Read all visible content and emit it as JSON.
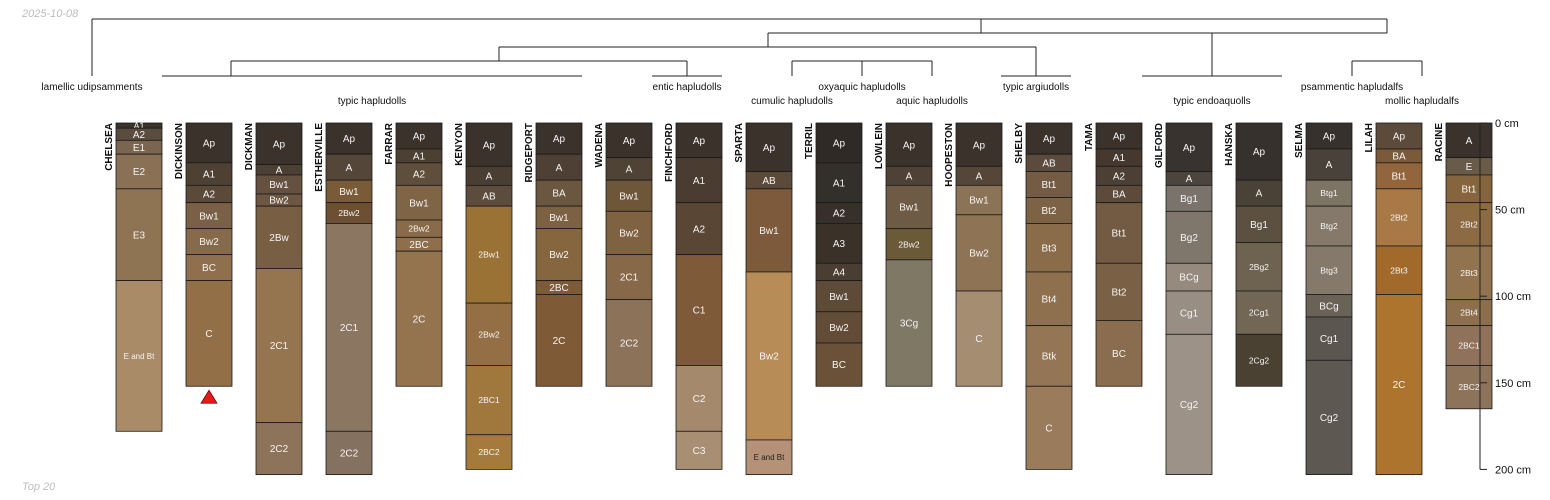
{
  "date_stamp": "2025-10-08",
  "footer_note": "Top 20",
  "depth_axis": {
    "unit": "cm",
    "max_depth": 200,
    "ticks": [
      {
        "depth": 0,
        "label": "0 cm"
      },
      {
        "depth": 50,
        "label": "50 cm"
      },
      {
        "depth": 100,
        "label": "100 cm"
      },
      {
        "depth": 150,
        "label": "150 cm"
      },
      {
        "depth": 200,
        "label": "200 cm"
      }
    ]
  },
  "group_labels": [
    {
      "text": "lamellic udipsamments",
      "level": 1
    },
    {
      "text": "typic hapludolls",
      "level": 2
    },
    {
      "text": "entic hapludolls",
      "level": 1
    },
    {
      "text": "cumulic hapludolls",
      "level": 2
    },
    {
      "text": "oxyaquic hapludolls",
      "level": 1
    },
    {
      "text": "aquic hapludolls",
      "level": 2
    },
    {
      "text": "typic argiudolls",
      "level": 1
    },
    {
      "text": "typic endoaquolls",
      "level": 2
    },
    {
      "text": "psammentic hapludalfs",
      "level": 1
    },
    {
      "text": "mollic hapludalfs",
      "level": 2
    }
  ],
  "profiles": [
    {
      "name": "CHELSEA",
      "horizons": [
        {
          "name": "A1",
          "top": 0,
          "bottom": 3,
          "color": "#3a322b"
        },
        {
          "name": "A2",
          "top": 3,
          "bottom": 10,
          "color": "#5a4c3e"
        },
        {
          "name": "E1",
          "top": 10,
          "bottom": 18,
          "color": "#7a6650"
        },
        {
          "name": "E2",
          "top": 18,
          "bottom": 38,
          "color": "#8a7055"
        },
        {
          "name": "E3",
          "top": 38,
          "bottom": 91,
          "color": "#8e7453"
        },
        {
          "name": "E and Bt",
          "top": 91,
          "bottom": 178,
          "color": "#a98c67"
        }
      ]
    },
    {
      "name": "DICKINSON",
      "horizons": [
        {
          "name": "Ap",
          "top": 0,
          "bottom": 23,
          "color": "#3b322b"
        },
        {
          "name": "A1",
          "top": 23,
          "bottom": 36,
          "color": "#4e4033"
        },
        {
          "name": "A2",
          "top": 36,
          "bottom": 46,
          "color": "#5b4a39"
        },
        {
          "name": "Bw1",
          "top": 46,
          "bottom": 61,
          "color": "#7a6046"
        },
        {
          "name": "Bw2",
          "top": 61,
          "bottom": 76,
          "color": "#876a4b"
        },
        {
          "name": "BC",
          "top": 76,
          "bottom": 91,
          "color": "#906f4e"
        },
        {
          "name": "C",
          "top": 91,
          "bottom": 152,
          "color": "#936f48"
        }
      ]
    },
    {
      "name": "DICKMAN",
      "horizons": [
        {
          "name": "Ap",
          "top": 0,
          "bottom": 24,
          "color": "#3b322c"
        },
        {
          "name": "A",
          "top": 24,
          "bottom": 30,
          "color": "#4c4034"
        },
        {
          "name": "Bw1",
          "top": 30,
          "bottom": 41,
          "color": "#655140"
        },
        {
          "name": "Bw2",
          "top": 41,
          "bottom": 48,
          "color": "#6d5743"
        },
        {
          "name": "2Bw",
          "top": 48,
          "bottom": 84,
          "color": "#785f44"
        },
        {
          "name": "2C1",
          "top": 84,
          "bottom": 173,
          "color": "#94754f"
        },
        {
          "name": "2C2",
          "top": 173,
          "bottom": 203,
          "color": "#8c735a"
        }
      ]
    },
    {
      "name": "ESTHERVILLE",
      "horizons": [
        {
          "name": "Ap",
          "top": 0,
          "bottom": 18,
          "color": "#3b322b"
        },
        {
          "name": "A",
          "top": 18,
          "bottom": 33,
          "color": "#54473a"
        },
        {
          "name": "Bw1",
          "top": 33,
          "bottom": 46,
          "color": "#7a5b38"
        },
        {
          "name": "2Bw2",
          "top": 46,
          "bottom": 58,
          "color": "#6d5033"
        },
        {
          "name": "2C1",
          "top": 58,
          "bottom": 178,
          "color": "#8a7661"
        },
        {
          "name": "2C2",
          "top": 178,
          "bottom": 203,
          "color": "#857160"
        }
      ]
    },
    {
      "name": "FARRAR",
      "horizons": [
        {
          "name": "Ap",
          "top": 0,
          "bottom": 15,
          "color": "#3b322b"
        },
        {
          "name": "A1",
          "top": 15,
          "bottom": 23,
          "color": "#4c4033"
        },
        {
          "name": "A2",
          "top": 23,
          "bottom": 36,
          "color": "#5f4e3c"
        },
        {
          "name": "Bw1",
          "top": 36,
          "bottom": 56,
          "color": "#7f6446"
        },
        {
          "name": "2Bw2",
          "top": 56,
          "bottom": 66,
          "color": "#8a6b49"
        },
        {
          "name": "2BC",
          "top": 66,
          "bottom": 74,
          "color": "#8e6e4b"
        },
        {
          "name": "2C",
          "top": 74,
          "bottom": 152,
          "color": "#94744f"
        }
      ]
    },
    {
      "name": "KENYON",
      "horizons": [
        {
          "name": "Ap",
          "top": 0,
          "bottom": 25,
          "color": "#3b322b"
        },
        {
          "name": "A",
          "top": 25,
          "bottom": 36,
          "color": "#4a3e33"
        },
        {
          "name": "AB",
          "top": 36,
          "bottom": 48,
          "color": "#5c4c3d"
        },
        {
          "name": "2Bw1",
          "top": 48,
          "bottom": 104,
          "color": "#9a7235"
        },
        {
          "name": "2Bw2",
          "top": 104,
          "bottom": 140,
          "color": "#946f45"
        },
        {
          "name": "2BC1",
          "top": 140,
          "bottom": 180,
          "color": "#a0783e"
        },
        {
          "name": "2BC2",
          "top": 180,
          "bottom": 200,
          "color": "#a47b3d"
        }
      ]
    },
    {
      "name": "RIDGEPORT",
      "horizons": [
        {
          "name": "Ap",
          "top": 0,
          "bottom": 18,
          "color": "#3b322b"
        },
        {
          "name": "A",
          "top": 18,
          "bottom": 33,
          "color": "#4e4034"
        },
        {
          "name": "BA",
          "top": 33,
          "bottom": 48,
          "color": "#6b5640"
        },
        {
          "name": "Bw1",
          "top": 48,
          "bottom": 61,
          "color": "#7d6143"
        },
        {
          "name": "Bw2",
          "top": 61,
          "bottom": 91,
          "color": "#86663f"
        },
        {
          "name": "2BC",
          "top": 91,
          "bottom": 99,
          "color": "#7d5a38"
        },
        {
          "name": "2C",
          "top": 99,
          "bottom": 152,
          "color": "#7e5a37"
        }
      ]
    },
    {
      "name": "WADENA",
      "horizons": [
        {
          "name": "Ap",
          "top": 0,
          "bottom": 20,
          "color": "#3b322b"
        },
        {
          "name": "A",
          "top": 20,
          "bottom": 33,
          "color": "#4f4336"
        },
        {
          "name": "Bw1",
          "top": 33,
          "bottom": 51,
          "color": "#6e5639"
        },
        {
          "name": "Bw2",
          "top": 51,
          "bottom": 76,
          "color": "#7f6241"
        },
        {
          "name": "2C1",
          "top": 76,
          "bottom": 102,
          "color": "#87694a"
        },
        {
          "name": "2C2",
          "top": 102,
          "bottom": 152,
          "color": "#8c7258"
        }
      ]
    },
    {
      "name": "FINCHFORD",
      "horizons": [
        {
          "name": "Ap",
          "top": 0,
          "bottom": 20,
          "color": "#3b322b"
        },
        {
          "name": "A1",
          "top": 20,
          "bottom": 46,
          "color": "#4a3c30"
        },
        {
          "name": "A2",
          "top": 46,
          "bottom": 76,
          "color": "#5a4634"
        },
        {
          "name": "C1",
          "top": 76,
          "bottom": 140,
          "color": "#7e5a38"
        },
        {
          "name": "C2",
          "top": 140,
          "bottom": 178,
          "color": "#a4896c"
        },
        {
          "name": "C3",
          "top": 178,
          "bottom": 200,
          "color": "#a88e72"
        }
      ]
    },
    {
      "name": "SPARTA",
      "horizons": [
        {
          "name": "Ap",
          "top": 0,
          "bottom": 28,
          "color": "#3b322b"
        },
        {
          "name": "AB",
          "top": 28,
          "bottom": 38,
          "color": "#5b4a3a"
        },
        {
          "name": "Bw1",
          "top": 38,
          "bottom": 86,
          "color": "#7d5a3b"
        },
        {
          "name": "Bw2",
          "top": 86,
          "bottom": 183,
          "color": "#b88c56"
        },
        {
          "name": "E and Bt",
          "top": 183,
          "bottom": 203,
          "color": "#b59277"
        }
      ]
    },
    {
      "name": "TERRIL",
      "horizons": [
        {
          "name": "Ap",
          "top": 0,
          "bottom": 23,
          "color": "#2f2a26"
        },
        {
          "name": "A1",
          "top": 23,
          "bottom": 46,
          "color": "#33302c"
        },
        {
          "name": "A2",
          "top": 46,
          "bottom": 58,
          "color": "#37302a"
        },
        {
          "name": "A3",
          "top": 58,
          "bottom": 81,
          "color": "#3a3229"
        },
        {
          "name": "A4",
          "top": 81,
          "bottom": 91,
          "color": "#4a3d31"
        },
        {
          "name": "Bw1",
          "top": 91,
          "bottom": 109,
          "color": "#5d4a37"
        },
        {
          "name": "Bw2",
          "top": 109,
          "bottom": 127,
          "color": "#624c37"
        },
        {
          "name": "BC",
          "top": 127,
          "bottom": 152,
          "color": "#6b5137"
        }
      ]
    },
    {
      "name": "LOWLEIN",
      "horizons": [
        {
          "name": "Ap",
          "top": 0,
          "bottom": 25,
          "color": "#3b322b"
        },
        {
          "name": "A",
          "top": 25,
          "bottom": 36,
          "color": "#4e4236"
        },
        {
          "name": "Bw1",
          "top": 36,
          "bottom": 61,
          "color": "#6e5b45"
        },
        {
          "name": "2Bw2",
          "top": 61,
          "bottom": 79,
          "color": "#6b5a37"
        },
        {
          "name": "3Cg",
          "top": 79,
          "bottom": 152,
          "color": "#7e7865"
        }
      ]
    },
    {
      "name": "HOOPESTON",
      "horizons": [
        {
          "name": "Ap",
          "top": 0,
          "bottom": 25,
          "color": "#3b322b"
        },
        {
          "name": "A",
          "top": 25,
          "bottom": 36,
          "color": "#554637"
        },
        {
          "name": "Bw1",
          "top": 36,
          "bottom": 53,
          "color": "#8b7358"
        },
        {
          "name": "Bw2",
          "top": 53,
          "bottom": 97,
          "color": "#8e7455"
        },
        {
          "name": "C",
          "top": 97,
          "bottom": 152,
          "color": "#a58d72"
        }
      ]
    },
    {
      "name": "SHELBY",
      "horizons": [
        {
          "name": "Ap",
          "top": 0,
          "bottom": 18,
          "color": "#3b322b"
        },
        {
          "name": "AB",
          "top": 18,
          "bottom": 28,
          "color": "#5b4b3c"
        },
        {
          "name": "Bt1",
          "top": 28,
          "bottom": 43,
          "color": "#735b44"
        },
        {
          "name": "Bt2",
          "top": 43,
          "bottom": 58,
          "color": "#7e6245"
        },
        {
          "name": "Bt3",
          "top": 58,
          "bottom": 86,
          "color": "#8a6c4b"
        },
        {
          "name": "Bt4",
          "top": 86,
          "bottom": 117,
          "color": "#8e704f"
        },
        {
          "name": "Btk",
          "top": 117,
          "bottom": 152,
          "color": "#947556"
        },
        {
          "name": "C",
          "top": 152,
          "bottom": 200,
          "color": "#9a7b5b"
        }
      ]
    },
    {
      "name": "TAMA",
      "horizons": [
        {
          "name": "Ap",
          "top": 0,
          "bottom": 15,
          "color": "#3b322b"
        },
        {
          "name": "A1",
          "top": 15,
          "bottom": 25,
          "color": "#45392f"
        },
        {
          "name": "A2",
          "top": 25,
          "bottom": 36,
          "color": "#4c3f33"
        },
        {
          "name": "BA",
          "top": 36,
          "bottom": 46,
          "color": "#5c4a3a"
        },
        {
          "name": "Bt1",
          "top": 46,
          "bottom": 81,
          "color": "#725a43"
        },
        {
          "name": "Bt2",
          "top": 81,
          "bottom": 114,
          "color": "#7a6045"
        },
        {
          "name": "BC",
          "top": 114,
          "bottom": 152,
          "color": "#8a6c4f"
        }
      ]
    },
    {
      "name": "GILFORD",
      "horizons": [
        {
          "name": "Ap",
          "top": 0,
          "bottom": 28,
          "color": "#38332f"
        },
        {
          "name": "A",
          "top": 28,
          "bottom": 36,
          "color": "#4c453e"
        },
        {
          "name": "Bg1",
          "top": 36,
          "bottom": 51,
          "color": "#7a736b"
        },
        {
          "name": "Bg2",
          "top": 51,
          "bottom": 81,
          "color": "#7f776c"
        },
        {
          "name": "BCg",
          "top": 81,
          "bottom": 97,
          "color": "#958a7d"
        },
        {
          "name": "Cg1",
          "top": 97,
          "bottom": 122,
          "color": "#988e83"
        },
        {
          "name": "Cg2",
          "top": 122,
          "bottom": 203,
          "color": "#9c9288"
        }
      ]
    },
    {
      "name": "HANSKA",
      "horizons": [
        {
          "name": "Ap",
          "top": 0,
          "bottom": 33,
          "color": "#36312c"
        },
        {
          "name": "A",
          "top": 33,
          "bottom": 48,
          "color": "#4b4237"
        },
        {
          "name": "Bg1",
          "top": 48,
          "bottom": 69,
          "color": "#5c5141"
        },
        {
          "name": "2Bg2",
          "top": 69,
          "bottom": 97,
          "color": "#6e6251"
        },
        {
          "name": "2Cg1",
          "top": 97,
          "bottom": 122,
          "color": "#726755"
        },
        {
          "name": "2Cg2",
          "top": 122,
          "bottom": 152,
          "color": "#4b4133"
        }
      ]
    },
    {
      "name": "SELMA",
      "horizons": [
        {
          "name": "Ap",
          "top": 0,
          "bottom": 15,
          "color": "#36312d"
        },
        {
          "name": "A",
          "top": 15,
          "bottom": 33,
          "color": "#48423b"
        },
        {
          "name": "Btg1",
          "top": 33,
          "bottom": 48,
          "color": "#7e7464"
        },
        {
          "name": "Btg2",
          "top": 48,
          "bottom": 71,
          "color": "#84796a"
        },
        {
          "name": "Btg3",
          "top": 71,
          "bottom": 99,
          "color": "#85796b"
        },
        {
          "name": "BCg",
          "top": 99,
          "bottom": 112,
          "color": "#6a6157"
        },
        {
          "name": "Cg1",
          "top": 112,
          "bottom": 137,
          "color": "#5c5650"
        },
        {
          "name": "Cg2",
          "top": 137,
          "bottom": 203,
          "color": "#5e5852"
        }
      ]
    },
    {
      "name": "LILAH",
      "horizons": [
        {
          "name": "Ap",
          "top": 0,
          "bottom": 15,
          "color": "#5c4a3a"
        },
        {
          "name": "BA",
          "top": 15,
          "bottom": 23,
          "color": "#7b5a39"
        },
        {
          "name": "Bt1",
          "top": 23,
          "bottom": 38,
          "color": "#93653d"
        },
        {
          "name": "2Bt2",
          "top": 38,
          "bottom": 71,
          "color": "#a87947"
        },
        {
          "name": "2Bt3",
          "top": 71,
          "bottom": 99,
          "color": "#a1692a"
        },
        {
          "name": "2C",
          "top": 99,
          "bottom": 203,
          "color": "#ad742e"
        }
      ]
    },
    {
      "name": "RACINE",
      "horizons": [
        {
          "name": "A",
          "top": 0,
          "bottom": 20,
          "color": "#3b322b"
        },
        {
          "name": "E",
          "top": 20,
          "bottom": 30,
          "color": "#6a5a48"
        },
        {
          "name": "Bt1",
          "top": 30,
          "bottom": 46,
          "color": "#86653e"
        },
        {
          "name": "2Bt2",
          "top": 46,
          "bottom": 71,
          "color": "#8c6a43"
        },
        {
          "name": "2Bt3",
          "top": 71,
          "bottom": 102,
          "color": "#92734f"
        },
        {
          "name": "2Bt4",
          "top": 102,
          "bottom": 117,
          "color": "#8e6f4d"
        },
        {
          "name": "2BC1",
          "top": 117,
          "bottom": 140,
          "color": "#8f7259"
        },
        {
          "name": "2BC2",
          "top": 140,
          "bottom": 165,
          "color": "#8e735b"
        }
      ]
    }
  ]
}
